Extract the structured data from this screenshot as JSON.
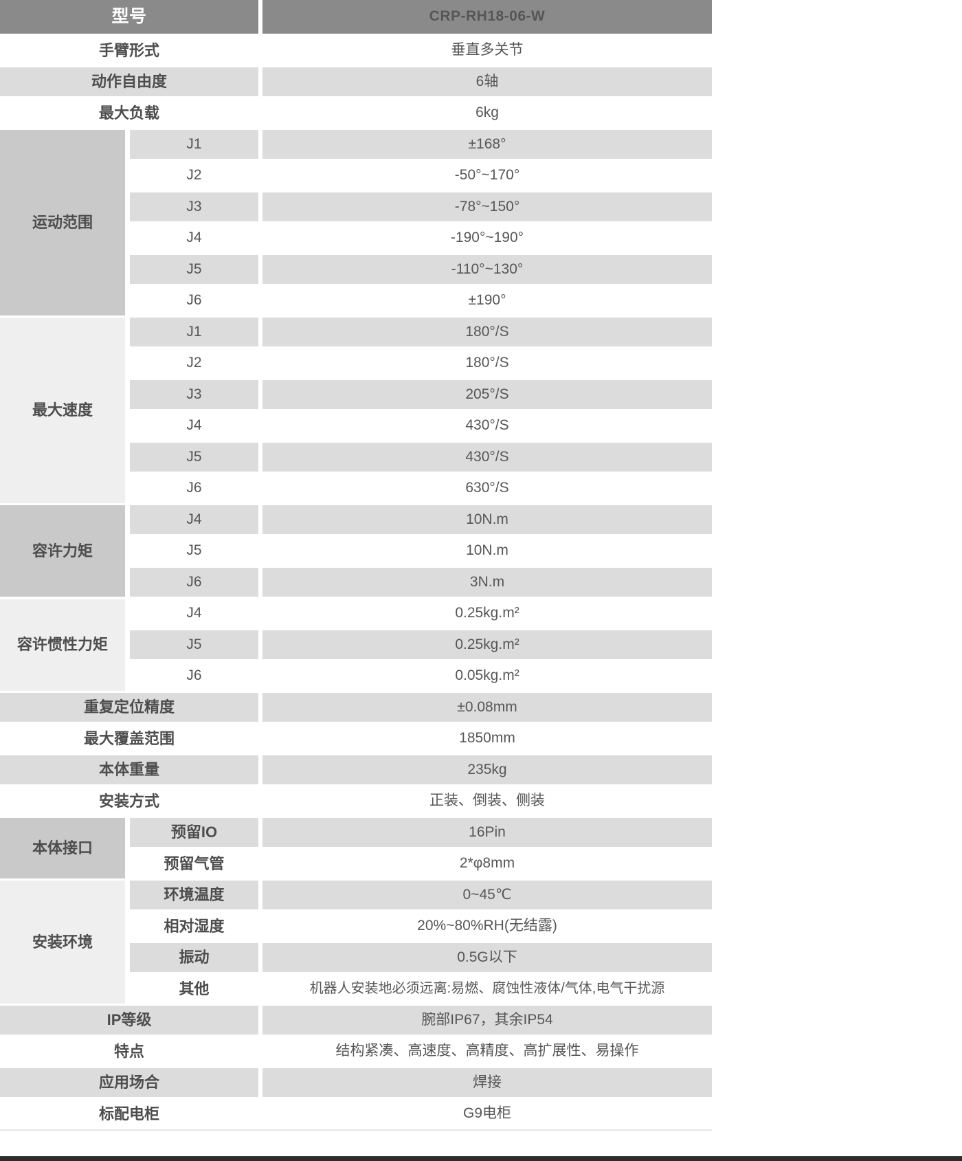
{
  "colors": {
    "header_bg": "#8a8a8a",
    "header_text": "#ffffff",
    "row_stripe_bg": "#dcdcdc",
    "group_cell_dark_bg": "#c9c9c9",
    "group_cell_light_bg": "#efefef",
    "body_text": "#565656",
    "label_text": "#4d4d4d",
    "footer_bar": "#2d2d2d"
  },
  "table": {
    "header": {
      "label": "型号",
      "value": "CRP-RH18-06-W"
    },
    "sections": [
      {
        "label": "手臂形式",
        "value": "垂直多关节"
      },
      {
        "label": "动作自由度",
        "value": "6轴"
      },
      {
        "label": "最大负载",
        "value": "6kg"
      },
      {
        "label": "运动范围",
        "rows": [
          {
            "label": "J1",
            "value": "±168°"
          },
          {
            "label": "J2",
            "value": "-50°~170°"
          },
          {
            "label": "J3",
            "value": "-78°~150°"
          },
          {
            "label": "J4",
            "value": "-190°~190°"
          },
          {
            "label": "J5",
            "value": "-110°~130°"
          },
          {
            "label": "J6",
            "value": "±190°"
          }
        ]
      },
      {
        "label": "最大速度",
        "rows": [
          {
            "label": "J1",
            "value": "180°/S"
          },
          {
            "label": "J2",
            "value": "180°/S"
          },
          {
            "label": "J3",
            "value": "205°/S"
          },
          {
            "label": "J4",
            "value": "430°/S"
          },
          {
            "label": "J5",
            "value": "430°/S"
          },
          {
            "label": "J6",
            "value": "630°/S"
          }
        ]
      },
      {
        "label": "容许力矩",
        "rows": [
          {
            "label": "J4",
            "value": "10N.m"
          },
          {
            "label": "J5",
            "value": "10N.m"
          },
          {
            "label": "J6",
            "value": "3N.m"
          }
        ]
      },
      {
        "label": "容许惯性力矩",
        "rows": [
          {
            "label": "J4",
            "value": "0.25kg.m²"
          },
          {
            "label": "J5",
            "value": "0.25kg.m²"
          },
          {
            "label": "J6",
            "value": "0.05kg.m²"
          }
        ]
      },
      {
        "label": "重复定位精度",
        "value": "±0.08mm"
      },
      {
        "label": "最大覆盖范围",
        "value": "1850mm"
      },
      {
        "label": "本体重量",
        "value": "235kg"
      },
      {
        "label": "安装方式",
        "value": "正装、倒装、侧装"
      },
      {
        "label": "本体接口",
        "rows": [
          {
            "label": "预留IO",
            "value": "16Pin"
          },
          {
            "label": "预留气管",
            "value": "2*φ8mm"
          }
        ]
      },
      {
        "label": "安装环境",
        "rows": [
          {
            "label": "环境温度",
            "value": "0~45℃"
          },
          {
            "label": "相对湿度",
            "value": "20%~80%RH(无结露)"
          },
          {
            "label": "振动",
            "value": "0.5G以下"
          },
          {
            "label": "其他",
            "value": "机器人安装地必须远离:易燃、腐蚀性液体/气体,电气干扰源"
          }
        ]
      },
      {
        "label": "IP等级",
        "value": "腕部IP67，其余IP54"
      },
      {
        "label": "特点",
        "value": "结构紧凑、高速度、高精度、高扩展性、易操作"
      },
      {
        "label": "应用场合",
        "value": "焊接"
      },
      {
        "label": "标配电柜",
        "value": "G9电柜"
      }
    ]
  }
}
